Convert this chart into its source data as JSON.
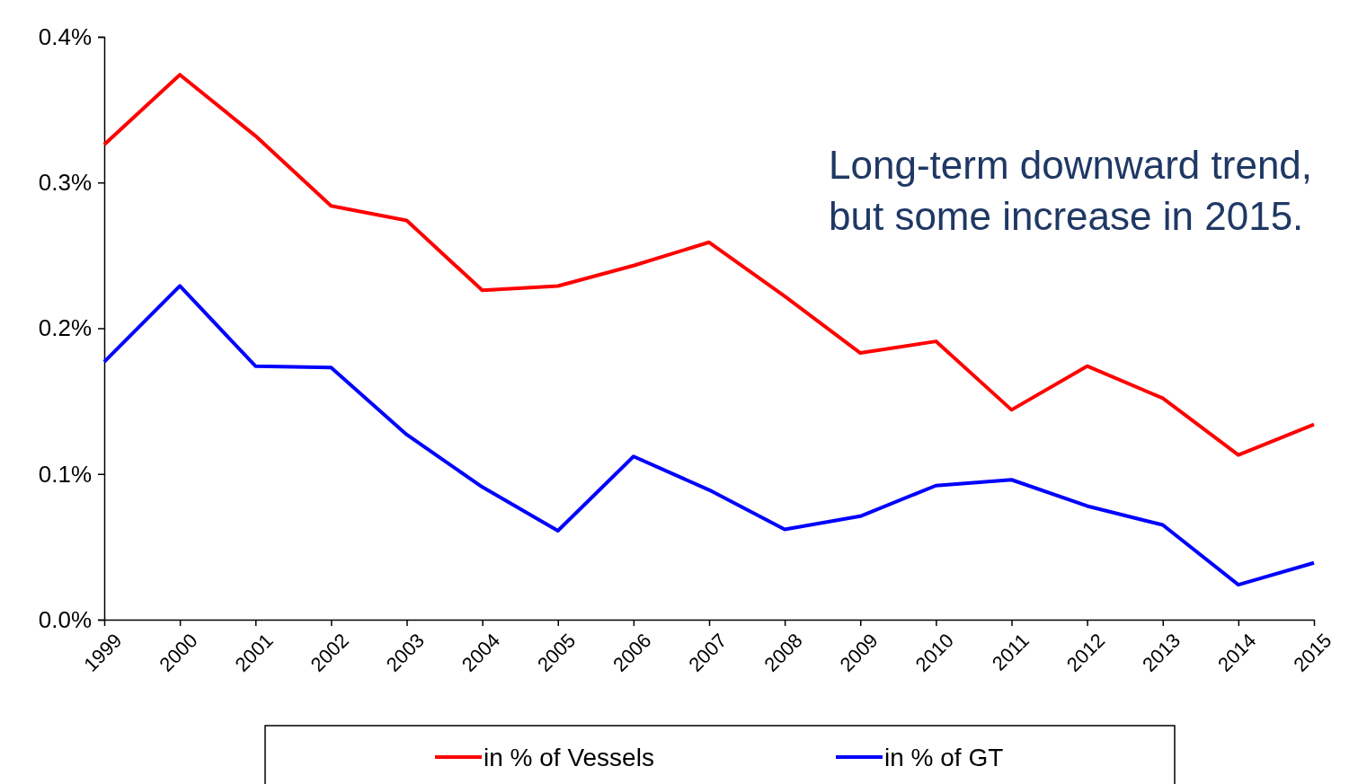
{
  "chart_data": {
    "type": "line",
    "categories": [
      "1999",
      "2000",
      "2001",
      "2002",
      "2003",
      "2004",
      "2005",
      "2006",
      "2007",
      "2008",
      "2009",
      "2010",
      "2011",
      "2012",
      "2013",
      "2014",
      "2015"
    ],
    "series": [
      {
        "name": "in % of Vessels",
        "color": "#ff0000",
        "values": [
          0.326,
          0.374,
          0.332,
          0.284,
          0.274,
          0.226,
          0.229,
          0.243,
          0.259,
          0.222,
          0.183,
          0.191,
          0.144,
          0.174,
          0.152,
          0.113,
          0.134
        ]
      },
      {
        "name": "in % of GT",
        "color": "#0000ff",
        "values": [
          0.177,
          0.229,
          0.174,
          0.173,
          0.127,
          0.091,
          0.061,
          0.112,
          0.089,
          0.062,
          0.071,
          0.092,
          0.096,
          0.078,
          0.065,
          0.024,
          0.039
        ]
      }
    ],
    "ylim": [
      0,
      0.4
    ],
    "yticks": [
      {
        "value": 0,
        "label": "0.0%"
      },
      {
        "value": 0.1,
        "label": "0.1%"
      },
      {
        "value": 0.2,
        "label": "0.2%"
      },
      {
        "value": 0.3,
        "label": "0.3%"
      },
      {
        "value": 0.4,
        "label": "0.4%"
      }
    ],
    "annotations": [
      "Long-term downward trend,\nbut some increase in 2015."
    ],
    "legend": "bottom",
    "grid": false,
    "marker": "none",
    "line_style": "solid"
  }
}
